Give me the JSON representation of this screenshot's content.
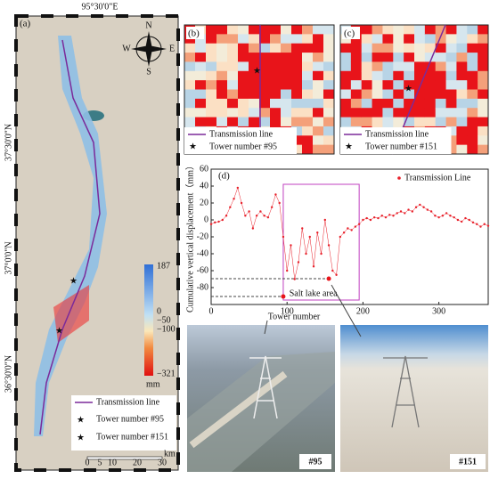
{
  "panel_a": {
    "label": "(a)",
    "lon_label": "95°30'0\"E",
    "lat_labels": [
      "37°30'0\"N",
      "37°0'0\"N",
      "36°30'0\"N"
    ],
    "compass": [
      "N",
      "S",
      "E",
      "W"
    ],
    "colorbar": {
      "labels": [
        "187",
        "0",
        "−50",
        "−100",
        "−321"
      ],
      "unit": "mm"
    },
    "legend": [
      "Transmission line",
      "Tower number #95",
      "Tower number #151"
    ],
    "scale": {
      "labels": [
        "0",
        "5",
        "10",
        "20",
        "30"
      ],
      "unit": "km"
    }
  },
  "panel_b": {
    "label": "(b)",
    "legend": [
      "Transmission line",
      "Tower number #95"
    ]
  },
  "panel_c": {
    "label": "(c)",
    "legend": [
      "Transmission line",
      "Tower number #151"
    ]
  },
  "chart_data": {
    "type": "line",
    "label": "(d)",
    "x_label": "Tower number",
    "y_label": "Cumulative vertical displacement（mm）",
    "annotation": "Salt lake area",
    "x": [
      0,
      5,
      10,
      15,
      20,
      25,
      30,
      35,
      40,
      45,
      50,
      55,
      60,
      65,
      70,
      75,
      80,
      85,
      90,
      95,
      100,
      105,
      110,
      115,
      120,
      125,
      130,
      135,
      140,
      145,
      150,
      155,
      160,
      165,
      170,
      175,
      180,
      185,
      190,
      195,
      200,
      205,
      210,
      215,
      220,
      225,
      230,
      235,
      240,
      245,
      250,
      255,
      260,
      265,
      270,
      275,
      280,
      285,
      290,
      295,
      300,
      305,
      310,
      315,
      320,
      325,
      330,
      335,
      340,
      345,
      350,
      355,
      360,
      365
    ],
    "series": [
      {
        "name": "Transmission Line",
        "color": "#e8202a",
        "values": [
          -5,
          -3,
          -2,
          0,
          5,
          15,
          25,
          38,
          20,
          5,
          10,
          -10,
          5,
          10,
          5,
          3,
          15,
          30,
          20,
          -20,
          -60,
          -30,
          -70,
          -50,
          -10,
          -40,
          -20,
          -55,
          -15,
          -40,
          0,
          -30,
          -60,
          -65,
          -20,
          -15,
          -10,
          -12,
          -8,
          -5,
          0,
          2,
          0,
          3,
          2,
          5,
          3,
          6,
          5,
          8,
          10,
          8,
          12,
          10,
          15,
          18,
          15,
          12,
          10,
          5,
          3,
          5,
          8,
          5,
          3,
          0,
          -2,
          2,
          0,
          -3,
          -5,
          -8,
          -5,
          -7
        ]
      }
    ],
    "xlim": [
      0,
      365
    ],
    "xticks": [
      0,
      100,
      200,
      300
    ],
    "ylim": [
      -100,
      60
    ],
    "yticks": [
      60,
      40,
      20,
      0,
      -20,
      -40,
      -60,
      -80
    ]
  },
  "photos": [
    {
      "label": "#95"
    },
    {
      "label": "#151"
    }
  ]
}
